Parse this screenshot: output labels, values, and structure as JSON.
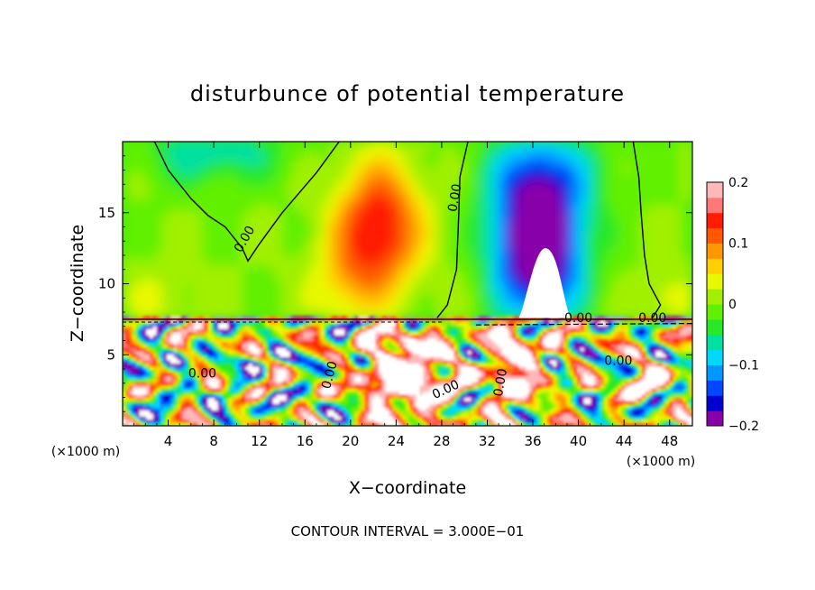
{
  "chart_data": {
    "type": "heatmap",
    "title": "disturbunce of potential temperature",
    "xlabel": "X−coordinate",
    "ylabel": "Z−coordinate",
    "x_unit_label": "(×1000 m)",
    "z_unit_label": "(×1000 m)",
    "footer": "CONTOUR INTERVAL = 3.000E−01",
    "xlim": [
      0,
      50
    ],
    "ylim": [
      0,
      20
    ],
    "x_ticks": [
      4,
      8,
      12,
      16,
      20,
      24,
      28,
      32,
      36,
      40,
      44,
      48
    ],
    "y_ticks": [
      5,
      10,
      15
    ],
    "colorbar": {
      "min": -0.2,
      "max": 0.2,
      "ticks": [
        0.2,
        0.1,
        0,
        -0.1,
        -0.2
      ],
      "tick_labels": [
        "0.2",
        "0.1",
        "0",
        "−0.1",
        "−0.2"
      ],
      "colors": [
        "#8800aa",
        "#0000d0",
        "#0048ff",
        "#0098ff",
        "#00d8ff",
        "#00e0a0",
        "#28e828",
        "#60f000",
        "#a0f000",
        "#e8f800",
        "#ffd000",
        "#ff9800",
        "#ff5800",
        "#ff1c00",
        "#ff7878",
        "#ffb8b8"
      ]
    },
    "contour_labels": [
      {
        "text": "0.00",
        "x": 11,
        "z": 13,
        "angle": -60
      },
      {
        "text": "0.00",
        "x": 29.5,
        "z": 16,
        "angle": -80
      },
      {
        "text": "0.00",
        "x": 7,
        "z": 3.4,
        "angle": 0
      },
      {
        "text": "0.00",
        "x": 18.5,
        "z": 3.5,
        "angle": -75
      },
      {
        "text": "0.00",
        "x": 28.5,
        "z": 2.3,
        "angle": -25
      },
      {
        "text": "0.00",
        "x": 33.5,
        "z": 3.0,
        "angle": -80
      },
      {
        "text": "0.00",
        "x": 40,
        "z": 7.3,
        "angle": 0
      },
      {
        "text": "0.00",
        "x": 46.5,
        "z": 7.3,
        "angle": 0
      },
      {
        "text": "0.00",
        "x": 43.5,
        "z": 4.3,
        "angle": 0
      }
    ],
    "grid": false,
    "legend": "right"
  }
}
